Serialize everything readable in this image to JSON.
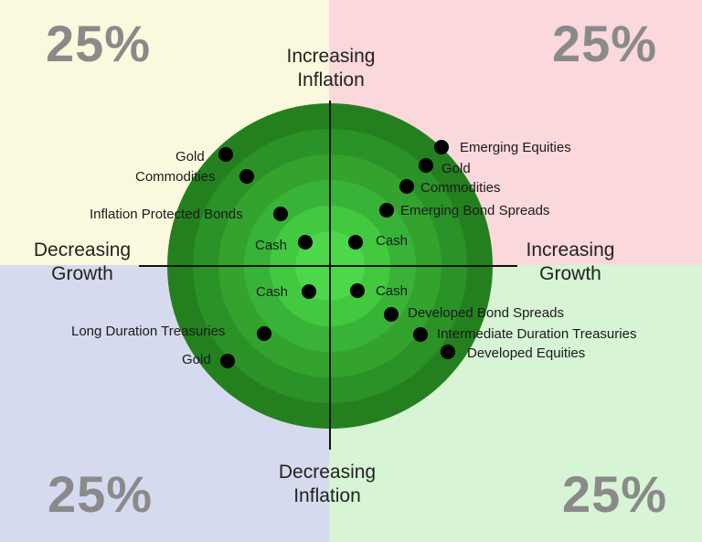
{
  "quadrants": {
    "top_left": {
      "percent": "25%",
      "color": "#fbf9dd"
    },
    "top_right": {
      "percent": "25%",
      "color": "#fad8dc"
    },
    "bottom_left": {
      "percent": "25%",
      "color": "#d6daef"
    },
    "bottom_right": {
      "percent": "25%",
      "color": "#d7f4d5"
    }
  },
  "axes": {
    "up": {
      "line1": "Increasing",
      "line2": "Inflation"
    },
    "down": {
      "line1": "Decreasing",
      "line2": "Inflation"
    },
    "left": {
      "line1": "Decreasing",
      "line2": "Growth"
    },
    "right": {
      "line1": "Increasing",
      "line2": "Growth"
    }
  },
  "target": {
    "ring_colors": [
      "#24801f",
      "#2a9227",
      "#33a32d",
      "#38b337",
      "#42c93f",
      "#4cd84a"
    ]
  },
  "assets": {
    "top_left": [
      "Gold",
      "Commodities",
      "Inflation Protected Bonds",
      "Cash"
    ],
    "top_right": [
      "Emerging Equities",
      "Gold",
      "Commodities",
      "Emerging Bond Spreads",
      "Cash"
    ],
    "bottom_left": [
      "Cash",
      "Long Duration Treasuries",
      "Gold"
    ],
    "bottom_right": [
      "Cash",
      "Developed Bond Spreads",
      "Intermediate Duration Treasuries",
      "Developed Equities"
    ]
  }
}
